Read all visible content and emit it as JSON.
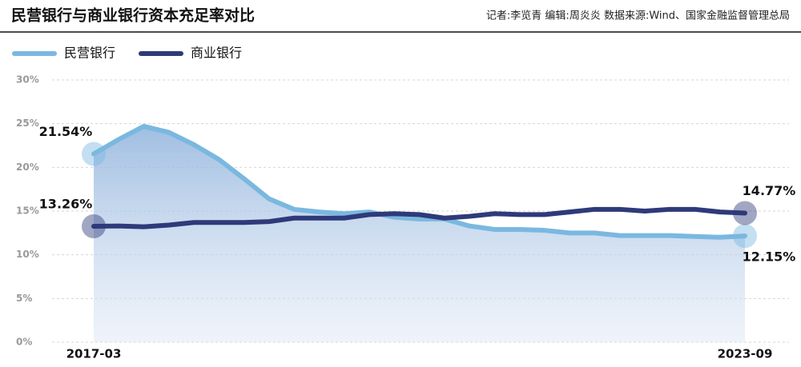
{
  "chart_data": {
    "type": "line",
    "title": "民营银行与商业银行资本充足率对比",
    "source": "记者:李览青  编辑:周炎炎  数据来源:Wind、国家金融监督管理总局",
    "categories": [
      "2017-03",
      null,
      null,
      null,
      null,
      null,
      null,
      null,
      null,
      null,
      null,
      null,
      null,
      null,
      null,
      null,
      null,
      null,
      null,
      null,
      null,
      null,
      null,
      null,
      null,
      null,
      "2023-09"
    ],
    "series": [
      {
        "name": "民营银行",
        "color": "#7ab8e0",
        "values": [
          21.54,
          23.2,
          24.7,
          24.0,
          22.6,
          20.9,
          18.7,
          16.4,
          15.2,
          14.9,
          14.7,
          14.9,
          14.3,
          14.1,
          14.1,
          13.3,
          12.9,
          12.9,
          12.8,
          12.5,
          12.5,
          12.2,
          12.2,
          12.2,
          12.1,
          12.0,
          12.15
        ],
        "value_labels": [
          "21.54%",
          null,
          null,
          null,
          null,
          null,
          null,
          null,
          null,
          null,
          null,
          null,
          null,
          null,
          null,
          null,
          null,
          null,
          null,
          null,
          null,
          null,
          null,
          null,
          null,
          null,
          "12.15%"
        ]
      },
      {
        "name": "商业银行",
        "color": "#2e3a7a",
        "values": [
          13.26,
          13.3,
          13.2,
          13.4,
          13.7,
          13.7,
          13.7,
          13.8,
          14.2,
          14.2,
          14.2,
          14.6,
          14.7,
          14.6,
          14.2,
          14.4,
          14.7,
          14.6,
          14.6,
          14.9,
          15.2,
          15.2,
          15.0,
          15.2,
          15.2,
          14.9,
          14.77
        ],
        "value_labels": [
          "13.26%",
          null,
          null,
          null,
          null,
          null,
          null,
          null,
          null,
          null,
          null,
          null,
          null,
          null,
          null,
          null,
          null,
          null,
          null,
          null,
          null,
          null,
          null,
          null,
          null,
          null,
          "14.77%"
        ]
      }
    ],
    "ylim": [
      0,
      30
    ],
    "yticks": [
      {
        "value": 0,
        "label": "0%"
      },
      {
        "value": 5,
        "label": "5%"
      },
      {
        "value": 10,
        "label": "10%"
      },
      {
        "value": 15,
        "label": "15%"
      },
      {
        "value": 20,
        "label": "20%"
      },
      {
        "value": 25,
        "label": "25%"
      },
      {
        "value": 30,
        "label": "30%"
      }
    ],
    "grid": true
  }
}
